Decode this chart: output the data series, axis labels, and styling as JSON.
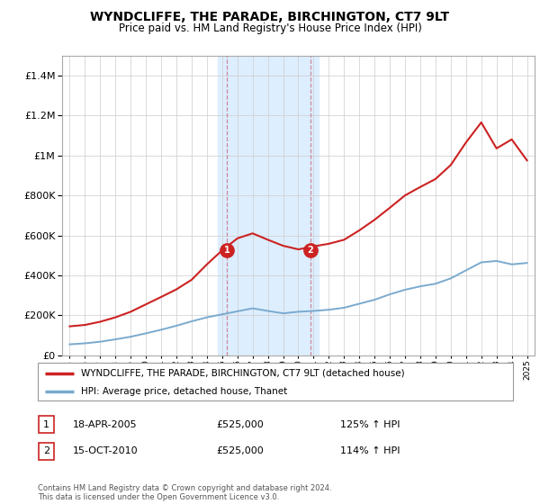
{
  "title": "WYNDCLIFFE, THE PARADE, BIRCHINGTON, CT7 9LT",
  "subtitle": "Price paid vs. HM Land Registry's House Price Index (HPI)",
  "legend_line1": "WYNDCLIFFE, THE PARADE, BIRCHINGTON, CT7 9LT (detached house)",
  "legend_line2": "HPI: Average price, detached house, Thanet",
  "footnote": "Contains HM Land Registry data © Crown copyright and database right 2024.\nThis data is licensed under the Open Government Licence v3.0.",
  "transaction1_date": "18-APR-2005",
  "transaction1_price": "£525,000",
  "transaction1_hpi": "125% ↑ HPI",
  "transaction2_date": "15-OCT-2010",
  "transaction2_price": "£525,000",
  "transaction2_hpi": "114% ↑ HPI",
  "hpi_color": "#7aaace",
  "price_color": "#cc2222",
  "highlight_color": "#ddeeff",
  "ylim": [
    0,
    1500000
  ],
  "yticks": [
    0,
    200000,
    400000,
    600000,
    800000,
    1000000,
    1200000,
    1400000
  ],
  "hpi_x": [
    1995,
    1996,
    1997,
    1998,
    1999,
    2000,
    2001,
    2002,
    2003,
    2004,
    2005,
    2006,
    2007,
    2008,
    2009,
    2010,
    2011,
    2012,
    2013,
    2014,
    2015,
    2016,
    2017,
    2018,
    2019,
    2020,
    2021,
    2022,
    2023,
    2024,
    2025
  ],
  "hpi_y": [
    55000,
    60000,
    68000,
    80000,
    93000,
    110000,
    128000,
    148000,
    170000,
    190000,
    205000,
    220000,
    235000,
    222000,
    210000,
    218000,
    222000,
    228000,
    238000,
    258000,
    278000,
    305000,
    328000,
    345000,
    358000,
    385000,
    425000,
    465000,
    472000,
    455000,
    462000
  ],
  "price_x": [
    1995,
    1996,
    1997,
    1998,
    1999,
    2000,
    2001,
    2002,
    2003,
    2004,
    2005,
    2006,
    2007,
    2008,
    2009,
    2010,
    2011,
    2012,
    2013,
    2014,
    2015,
    2016,
    2017,
    2018,
    2019,
    2020,
    2021,
    2022,
    2023,
    2024,
    2025
  ],
  "price_y": [
    145000,
    152000,
    168000,
    190000,
    218000,
    255000,
    292000,
    330000,
    378000,
    455000,
    525000,
    585000,
    610000,
    578000,
    548000,
    530000,
    545000,
    558000,
    578000,
    625000,
    678000,
    738000,
    800000,
    842000,
    882000,
    952000,
    1065000,
    1165000,
    1035000,
    1080000,
    975000
  ],
  "marker1_x": 2005.3,
  "marker1_y": 525000,
  "marker2_x": 2010.8,
  "marker2_y": 525000,
  "shade_x1": 2004.7,
  "shade_x2": 2011.3,
  "xlim_left": 1994.5,
  "xlim_right": 2025.5
}
